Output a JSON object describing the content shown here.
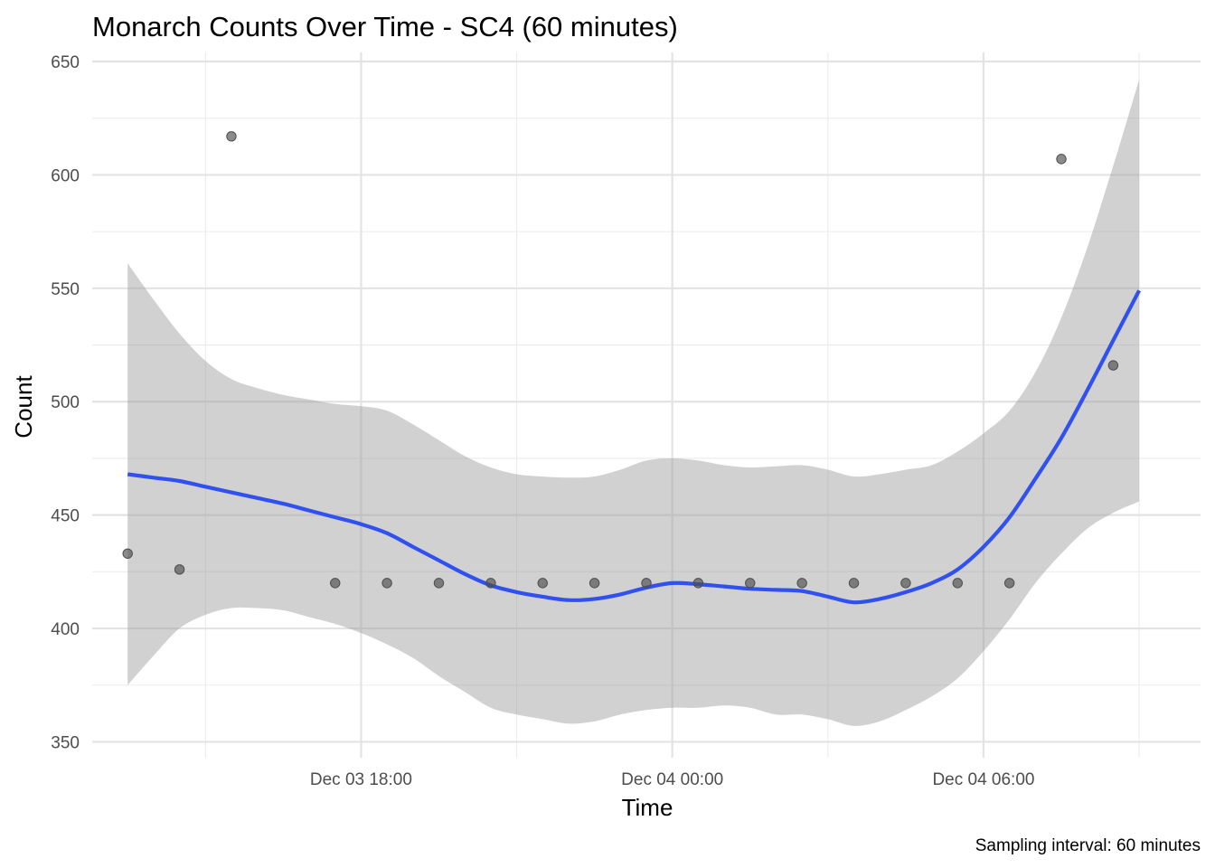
{
  "chart_data": {
    "type": "scatter",
    "title": "Monarch Counts Over Time - SC4 (60 minutes)",
    "xlabel": "Time",
    "ylabel": "Count",
    "caption": "Sampling interval: 60 minutes",
    "x_axis": {
      "type": "datetime",
      "range": [
        "2024-12-03 12:49",
        "2024-12-04 10:11"
      ],
      "ticks": [
        {
          "value": "2024-12-03 18:00",
          "label": "Dec 03 18:00"
        },
        {
          "value": "2024-12-04 00:00",
          "label": "Dec 04 00:00"
        },
        {
          "value": "2024-12-04 06:00",
          "label": "Dec 04 06:00"
        }
      ],
      "minor_ticks": [
        "2024-12-03 15:00",
        "2024-12-03 21:00",
        "2024-12-04 03:00",
        "2024-12-04 09:00"
      ]
    },
    "y_axis": {
      "range": [
        343,
        654
      ],
      "ticks": [
        350,
        400,
        450,
        500,
        550,
        600,
        650
      ],
      "minor_ticks": [
        375,
        425,
        475,
        525,
        575,
        625
      ]
    },
    "grid": true,
    "series": [
      {
        "type": "points",
        "color": "#4d4d4d",
        "points": [
          {
            "x": "2024-12-03 13:30",
            "y": 433
          },
          {
            "x": "2024-12-03 14:30",
            "y": 426
          },
          {
            "x": "2024-12-03 15:30",
            "y": 617
          },
          {
            "x": "2024-12-03 17:30",
            "y": 420
          },
          {
            "x": "2024-12-03 18:30",
            "y": 420
          },
          {
            "x": "2024-12-03 19:30",
            "y": 420
          },
          {
            "x": "2024-12-03 20:30",
            "y": 420
          },
          {
            "x": "2024-12-03 21:30",
            "y": 420
          },
          {
            "x": "2024-12-03 22:30",
            "y": 420
          },
          {
            "x": "2024-12-03 23:30",
            "y": 420
          },
          {
            "x": "2024-12-04 00:30",
            "y": 420
          },
          {
            "x": "2024-12-04 01:30",
            "y": 420
          },
          {
            "x": "2024-12-04 02:30",
            "y": 420
          },
          {
            "x": "2024-12-04 03:30",
            "y": 420
          },
          {
            "x": "2024-12-04 04:30",
            "y": 420
          },
          {
            "x": "2024-12-04 05:30",
            "y": 420
          },
          {
            "x": "2024-12-04 06:30",
            "y": 420
          },
          {
            "x": "2024-12-04 07:30",
            "y": 607
          },
          {
            "x": "2024-12-04 08:30",
            "y": 516
          }
        ]
      },
      {
        "type": "smooth",
        "color": "#3050f0",
        "band_color": "#999999",
        "points": [
          {
            "x": "2024-12-03 13:30",
            "y": 468,
            "ymin": 375,
            "ymax": 561
          },
          {
            "x": "2024-12-03 14:00",
            "y": 466.5,
            "ymin": 388,
            "ymax": 545
          },
          {
            "x": "2024-12-03 14:30",
            "y": 465,
            "ymin": 400,
            "ymax": 530
          },
          {
            "x": "2024-12-03 15:00",
            "y": 462.5,
            "ymin": 406,
            "ymax": 518
          },
          {
            "x": "2024-12-03 15:30",
            "y": 460,
            "ymin": 409,
            "ymax": 510
          },
          {
            "x": "2024-12-03 16:00",
            "y": 457.5,
            "ymin": 409,
            "ymax": 506
          },
          {
            "x": "2024-12-03 16:30",
            "y": 455,
            "ymin": 408,
            "ymax": 503
          },
          {
            "x": "2024-12-03 17:00",
            "y": 452,
            "ymin": 405,
            "ymax": 501
          },
          {
            "x": "2024-12-03 17:30",
            "y": 449,
            "ymin": 402,
            "ymax": 499
          },
          {
            "x": "2024-12-03 18:00",
            "y": 446,
            "ymin": 398,
            "ymax": 498
          },
          {
            "x": "2024-12-03 18:30",
            "y": 442,
            "ymin": 393,
            "ymax": 496
          },
          {
            "x": "2024-12-03 19:00",
            "y": 436,
            "ymin": 387,
            "ymax": 490
          },
          {
            "x": "2024-12-03 19:30",
            "y": 430,
            "ymin": 379,
            "ymax": 483
          },
          {
            "x": "2024-12-03 20:00",
            "y": 424,
            "ymin": 372,
            "ymax": 476
          },
          {
            "x": "2024-12-03 20:30",
            "y": 419,
            "ymin": 365,
            "ymax": 471
          },
          {
            "x": "2024-12-03 21:00",
            "y": 416,
            "ymin": 362,
            "ymax": 468
          },
          {
            "x": "2024-12-03 21:30",
            "y": 414,
            "ymin": 360,
            "ymax": 467
          },
          {
            "x": "2024-12-03 22:00",
            "y": 412.5,
            "ymin": 358,
            "ymax": 466.5
          },
          {
            "x": "2024-12-03 22:30",
            "y": 413,
            "ymin": 359,
            "ymax": 467
          },
          {
            "x": "2024-12-03 23:00",
            "y": 415,
            "ymin": 362,
            "ymax": 470
          },
          {
            "x": "2024-12-03 23:30",
            "y": 418,
            "ymin": 364,
            "ymax": 474
          },
          {
            "x": "2024-12-04 00:00",
            "y": 420,
            "ymin": 365,
            "ymax": 475
          },
          {
            "x": "2024-12-04 00:30",
            "y": 419.5,
            "ymin": 365,
            "ymax": 474
          },
          {
            "x": "2024-12-04 01:00",
            "y": 418.5,
            "ymin": 366,
            "ymax": 472
          },
          {
            "x": "2024-12-04 01:30",
            "y": 417.5,
            "ymin": 365,
            "ymax": 471
          },
          {
            "x": "2024-12-04 02:00",
            "y": 417,
            "ymin": 362,
            "ymax": 471.5
          },
          {
            "x": "2024-12-04 02:30",
            "y": 416.5,
            "ymin": 362,
            "ymax": 472
          },
          {
            "x": "2024-12-04 03:00",
            "y": 414,
            "ymin": 360,
            "ymax": 470
          },
          {
            "x": "2024-12-04 03:30",
            "y": 411.5,
            "ymin": 357,
            "ymax": 467
          },
          {
            "x": "2024-12-04 04:00",
            "y": 413,
            "ymin": 359,
            "ymax": 468
          },
          {
            "x": "2024-12-04 04:30",
            "y": 416,
            "ymin": 364,
            "ymax": 470
          },
          {
            "x": "2024-12-04 05:00",
            "y": 420,
            "ymin": 370,
            "ymax": 472
          },
          {
            "x": "2024-12-04 05:30",
            "y": 426,
            "ymin": 378,
            "ymax": 478
          },
          {
            "x": "2024-12-04 06:00",
            "y": 436,
            "ymin": 390,
            "ymax": 486
          },
          {
            "x": "2024-12-04 06:30",
            "y": 449,
            "ymin": 404,
            "ymax": 496
          },
          {
            "x": "2024-12-04 07:00",
            "y": 466,
            "ymin": 420,
            "ymax": 513
          },
          {
            "x": "2024-12-04 07:30",
            "y": 484,
            "ymin": 433,
            "ymax": 537
          },
          {
            "x": "2024-12-04 08:00",
            "y": 505,
            "ymin": 444,
            "ymax": 568
          },
          {
            "x": "2024-12-04 08:30",
            "y": 527,
            "ymin": 451,
            "ymax": 604
          },
          {
            "x": "2024-12-04 09:00",
            "y": 549,
            "ymin": 456,
            "ymax": 642
          }
        ]
      }
    ]
  }
}
